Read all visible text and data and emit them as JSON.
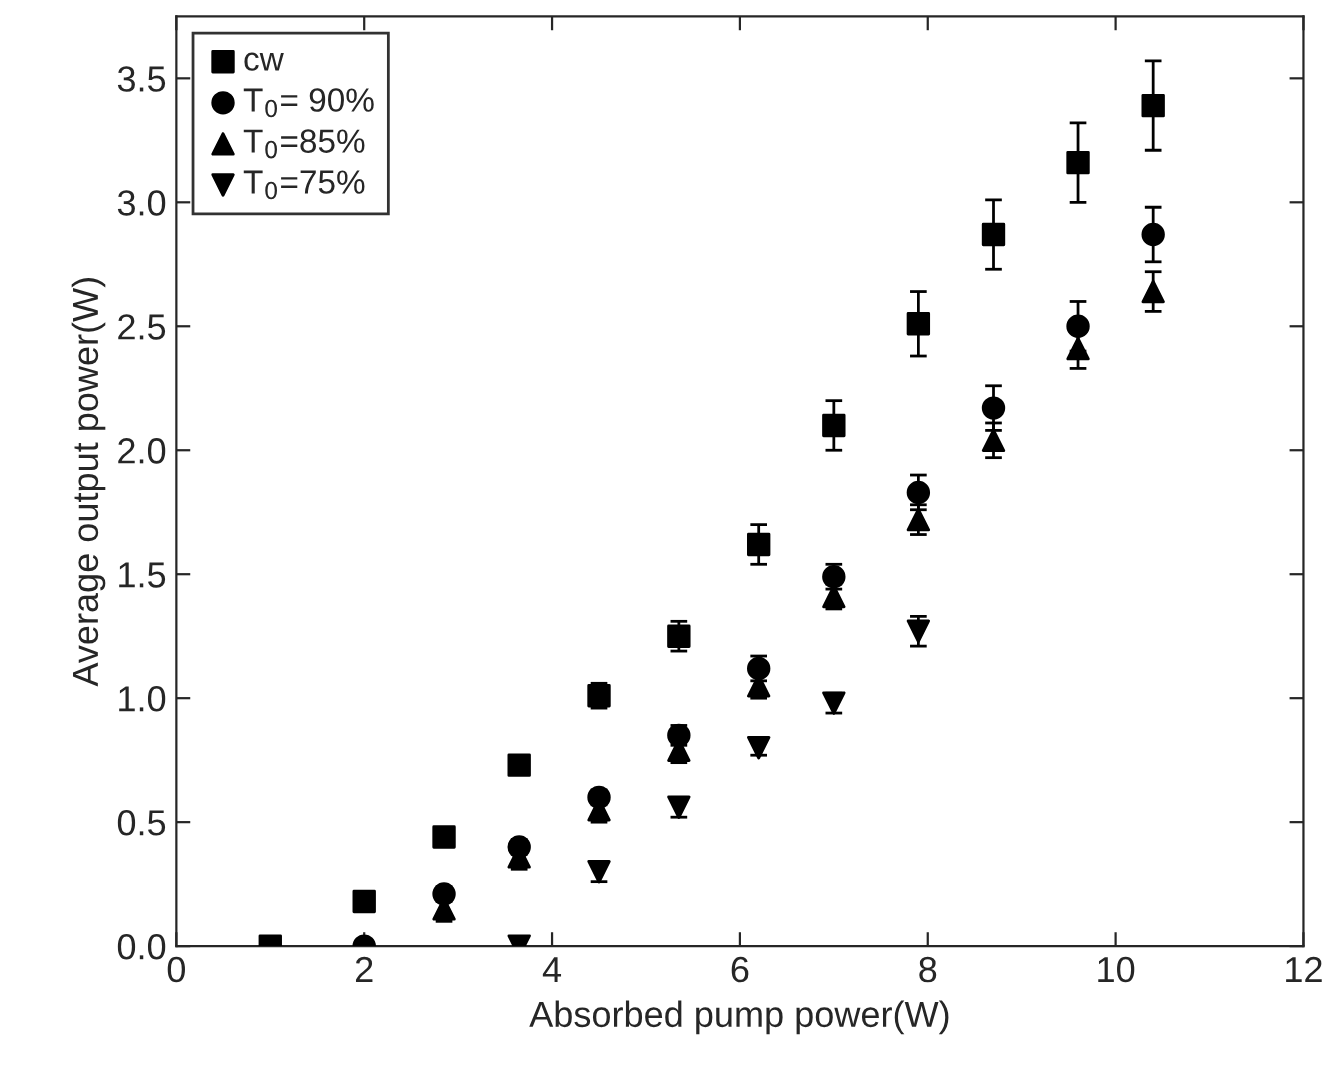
{
  "chart_data": {
    "type": "scatter",
    "xlabel": "Absorbed pump power(W)",
    "ylabel": "Average output power(W)",
    "xlim": [
      0,
      12
    ],
    "xticks": [
      0,
      2,
      4,
      6,
      8,
      10,
      12
    ],
    "ylim": [
      0,
      3.75
    ],
    "yticks": [
      {
        "value": 0,
        "label": "0.0"
      },
      0.5,
      {
        "value": 1,
        "label": "1.0"
      },
      1.5,
      {
        "value": 2,
        "label": "2.0"
      },
      2.5,
      {
        "value": 3,
        "label": "3.0"
      },
      3.5
    ],
    "legend": "top left",
    "grid": false,
    "series": [
      {
        "name": "cw",
        "color": "#000000",
        "marker": "square",
        "x": [
          1.0,
          2.0,
          2.85,
          3.65,
          4.5,
          5.35,
          6.2,
          7.0,
          7.9,
          8.7,
          9.6,
          10.4
        ],
        "values": [
          0,
          0.18,
          0.44,
          0.73,
          1.01,
          1.25,
          1.62,
          2.1,
          2.51,
          2.87,
          3.16,
          3.39
        ],
        "errors": [
          null,
          null,
          null,
          null,
          0.05,
          0.06,
          0.08,
          0.1,
          0.13,
          0.14,
          0.16,
          0.18
        ]
      },
      {
        "name": "T$_{0}$= 90%",
        "color": "#000000",
        "marker": "circle",
        "x": [
          2.0,
          2.85,
          3.65,
          4.5,
          5.35,
          6.2,
          7.0,
          7.9,
          8.7,
          9.6,
          10.4
        ],
        "values": [
          0,
          0.21,
          0.4,
          0.6,
          0.85,
          1.12,
          1.49,
          1.83,
          2.17,
          2.5,
          2.87
        ],
        "errors": [
          null,
          0.03,
          0.03,
          0.03,
          0.04,
          0.05,
          0.05,
          0.07,
          0.09,
          0.1,
          0.11
        ]
      },
      {
        "name": "T$_{0}$=85%",
        "color": "#000000",
        "marker": "triangle",
        "x": [
          2.85,
          3.65,
          4.5,
          5.35,
          6.2,
          7.0,
          7.9,
          8.7,
          9.6,
          10.4
        ],
        "values": [
          0.15,
          0.36,
          0.55,
          0.79,
          1.05,
          1.41,
          1.72,
          2.04,
          2.41,
          2.64
        ],
        "errors": [
          0.05,
          0.05,
          0.05,
          0.05,
          0.05,
          0.05,
          0.06,
          0.07,
          0.08,
          0.08
        ]
      },
      {
        "name": "T$_{0}$=75%",
        "color": "#000000",
        "marker": "triangle_down",
        "x": [
          3.65,
          4.5,
          5.35,
          6.2,
          7.0,
          7.9
        ],
        "values": [
          0,
          0.3,
          0.56,
          0.8,
          0.98,
          1.27
        ],
        "errors": [
          null,
          0.04,
          0.04,
          0.03,
          0.04,
          0.06
        ]
      }
    ]
  }
}
